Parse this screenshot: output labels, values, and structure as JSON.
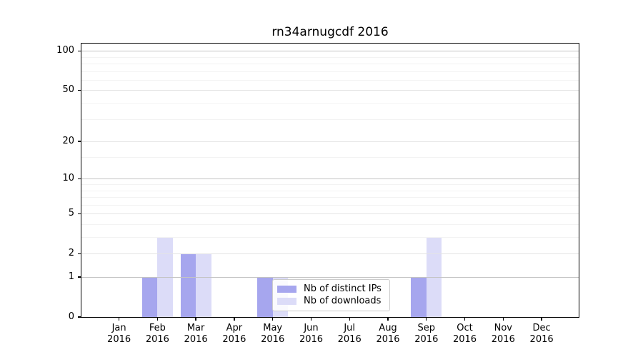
{
  "chart_data": {
    "type": "bar",
    "title": "rn34arnugcdf 2016",
    "x_categories": [
      "Jan 2016",
      "Feb 2016",
      "Mar 2016",
      "Apr 2016",
      "May 2016",
      "Jun 2016",
      "Jul 2016",
      "Aug 2016",
      "Sep 2016",
      "Oct 2016",
      "Nov 2016",
      "Dec 2016"
    ],
    "x_tick_months": [
      "Jan",
      "Feb",
      "Mar",
      "Apr",
      "May",
      "Jun",
      "Jul",
      "Aug",
      "Sep",
      "Oct",
      "Nov",
      "Dec"
    ],
    "x_tick_year": "2016",
    "series": [
      {
        "name": "Nb of distinct IPs",
        "color": "#a6a6ee",
        "values": [
          0,
          1,
          2,
          0,
          1,
          0,
          0,
          0,
          1,
          0,
          0,
          0
        ]
      },
      {
        "name": "Nb of downloads",
        "color": "#dcdcf8",
        "values": [
          0,
          3,
          2,
          0,
          1,
          0,
          0,
          0,
          3,
          0,
          0,
          0
        ]
      }
    ],
    "y_axis": {
      "scale": "log1p",
      "tick_values": [
        0,
        1,
        2,
        5,
        10,
        20,
        50,
        100
      ],
      "tick_labels": [
        "0",
        "1",
        "2",
        "5",
        "10",
        "20",
        "50",
        "100"
      ],
      "major_gridline_values": [
        1,
        10,
        100
      ],
      "mid_gridline_values": [
        2,
        5,
        20,
        50
      ],
      "minor_gridline_values": [
        3,
        4,
        6,
        7,
        8,
        9,
        15,
        30,
        40,
        60,
        70,
        80,
        90
      ],
      "ylim": [
        0,
        113
      ]
    },
    "legend": {
      "entries": [
        "Nb of distinct IPs",
        "Nb of downloads"
      ],
      "location": "lower center"
    },
    "grid": true
  },
  "colors": {
    "background": "#ffffff",
    "spine": "#000000",
    "text": "#000000",
    "grid_major": "#c4c4c4",
    "grid_mid": "#e4e4e4",
    "grid_minor": "#f3f3f3",
    "legend_border": "#cccccc",
    "legend_bg": "rgba(255,255,255,0.85)"
  }
}
